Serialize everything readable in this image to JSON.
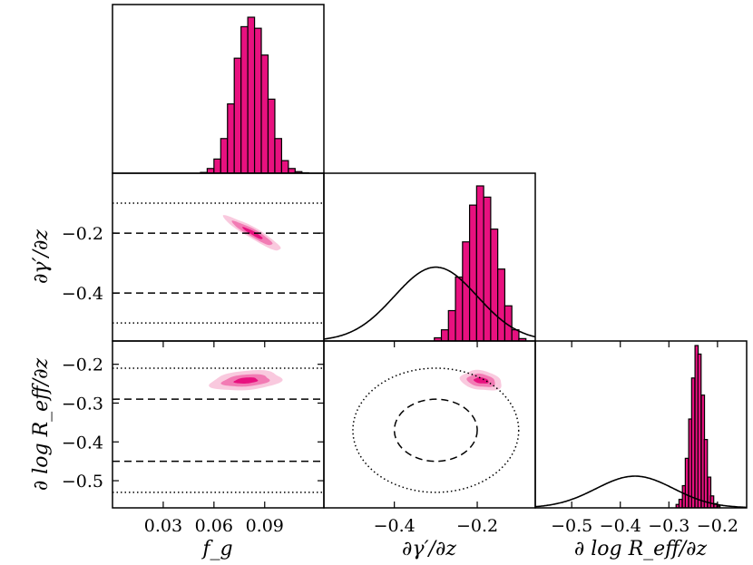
{
  "colors": {
    "histogram_fill": "#E8117F",
    "contour_levels": [
      "#F9C9DE",
      "#F27BB4",
      "#E8117F"
    ],
    "frame": "#000000",
    "prior_curve": "#000000"
  },
  "chart_data": [
    {
      "type": "bar",
      "panel": "histogram-fg",
      "title": "",
      "xlabel": "",
      "ylabel": "",
      "xlim": [
        0.0,
        0.125
      ],
      "ylim": [
        0,
        1.0
      ],
      "categories": [
        "0.054",
        "0.058",
        "0.062",
        "0.066",
        "0.070",
        "0.074",
        "0.078",
        "0.082",
        "0.086",
        "0.090",
        "0.094",
        "0.098",
        "0.102",
        "0.106",
        "0.110",
        "0.114"
      ],
      "bin_width": 0.004,
      "values": [
        0.005,
        0.03,
        0.09,
        0.22,
        0.44,
        0.73,
        0.93,
        0.99,
        0.92,
        0.75,
        0.47,
        0.22,
        0.08,
        0.03,
        0.01,
        0.003
      ]
    },
    {
      "type": "heatmap",
      "panel": "scatter-fg-dgamma",
      "xlabel": "",
      "ylabel": "∂γ′/∂z",
      "xlim": [
        0.0,
        0.125
      ],
      "ylim": [
        -0.56,
        0.0
      ],
      "yticks": [
        "−0.2",
        "−0.4"
      ],
      "ytick_values": [
        -0.2,
        -0.4
      ],
      "contours": [
        {
          "level": "outer",
          "center": [
            0.083,
            -0.2
          ],
          "sx": 0.017,
          "sy": 0.058,
          "rho": -0.93
        },
        {
          "level": "middle",
          "center": [
            0.083,
            -0.2
          ],
          "sx": 0.012,
          "sy": 0.04,
          "rho": -0.93
        },
        {
          "level": "inner",
          "center": [
            0.083,
            -0.2
          ],
          "sx": 0.006,
          "sy": 0.02,
          "rho": -0.93
        }
      ],
      "reference_lines": [
        {
          "style": "dotted",
          "y": -0.1
        },
        {
          "style": "dashed",
          "y": -0.2
        },
        {
          "style": "dashed",
          "y": -0.4
        },
        {
          "style": "dotted",
          "y": -0.5
        }
      ]
    },
    {
      "type": "heatmap",
      "panel": "scatter-fg-dlogreff",
      "xlabel": "f_g",
      "ylabel": "∂ log R_eff/∂z",
      "xlim": [
        0.0,
        0.125
      ],
      "ylim": [
        -0.57,
        -0.14
      ],
      "xticks": [
        "0.03",
        "0.06",
        "0.09"
      ],
      "xtick_values": [
        0.03,
        0.06,
        0.09
      ],
      "yticks": [
        "−0.2",
        "−0.3",
        "−0.4",
        "−0.5"
      ],
      "ytick_values": [
        -0.2,
        -0.3,
        -0.4,
        -0.5
      ],
      "contours": [
        {
          "level": "outer",
          "center": [
            0.079,
            -0.242
          ],
          "sx": 0.021,
          "sy": 0.026,
          "rho": 0.28
        },
        {
          "level": "middle",
          "center": [
            0.079,
            -0.242
          ],
          "sx": 0.014,
          "sy": 0.016,
          "rho": 0.28
        },
        {
          "level": "inner",
          "center": [
            0.079,
            -0.242
          ],
          "sx": 0.007,
          "sy": 0.008,
          "rho": 0.28
        }
      ],
      "reference_lines": [
        {
          "style": "dotted",
          "y": -0.21
        },
        {
          "style": "dashed",
          "y": -0.29
        },
        {
          "style": "dashed",
          "y": -0.45
        },
        {
          "style": "dotted",
          "y": -0.53
        }
      ]
    },
    {
      "type": "bar",
      "panel": "histogram-dgamma",
      "xlabel": "",
      "ylabel": "",
      "xlim": [
        -0.57,
        -0.06
      ],
      "ylim": [
        0,
        1.0
      ],
      "bin_width": 0.017,
      "categories": [
        "-0.295",
        "-0.278",
        "-0.261",
        "-0.244",
        "-0.227",
        "-0.210",
        "-0.193",
        "-0.176",
        "-0.159",
        "-0.142",
        "-0.125",
        "-0.108",
        "-0.091"
      ],
      "values": [
        0.02,
        0.07,
        0.19,
        0.4,
        0.62,
        0.85,
        0.97,
        0.9,
        0.7,
        0.45,
        0.22,
        0.07,
        0.015
      ],
      "prior_curve": {
        "type": "gaussian",
        "mean": -0.3,
        "sigma": 0.1,
        "peak_fraction": 0.44
      }
    },
    {
      "type": "heatmap",
      "panel": "scatter-dgamma-dlogreff",
      "xlabel": "∂γ′/∂z",
      "ylabel": "",
      "xlim": [
        -0.57,
        -0.06
      ],
      "ylim": [
        -0.57,
        -0.14
      ],
      "xticks": [
        "−0.4",
        "−0.2"
      ],
      "xtick_values": [
        -0.4,
        -0.2
      ],
      "contours": [
        {
          "level": "outer",
          "center": [
            -0.19,
            -0.242
          ],
          "sx": 0.05,
          "sy": 0.026,
          "rho": -0.25
        },
        {
          "level": "middle",
          "center": [
            -0.19,
            -0.242
          ],
          "sx": 0.034,
          "sy": 0.017,
          "rho": -0.25
        },
        {
          "level": "inner",
          "center": [
            -0.19,
            -0.242
          ],
          "sx": 0.018,
          "sy": 0.008,
          "rho": -0.25
        }
      ],
      "reference_ellipses": [
        {
          "style": "dashed",
          "center": [
            -0.3,
            -0.37
          ],
          "rx": 0.1,
          "ry": 0.08
        },
        {
          "style": "dotted",
          "center": [
            -0.3,
            -0.37
          ],
          "rx": 0.2,
          "ry": 0.16
        }
      ]
    },
    {
      "type": "bar",
      "panel": "histogram-dlogreff",
      "xlabel": "∂ log R_eff/∂z",
      "ylabel": "",
      "xlim": [
        -0.575,
        -0.14
      ],
      "ylim": [
        0,
        1.0
      ],
      "xticks": [
        "−0.5",
        "−0.4",
        "−0.3",
        "−0.2"
      ],
      "xtick_values": [
        -0.5,
        -0.4,
        -0.3,
        -0.2
      ],
      "bin_width": 0.0065,
      "categories": [
        "-0.282",
        "-0.276",
        "-0.269",
        "-0.263",
        "-0.256",
        "-0.250",
        "-0.243",
        "-0.237",
        "-0.230",
        "-0.224",
        "-0.217",
        "-0.211",
        "-0.204",
        "-0.198"
      ],
      "values": [
        0.02,
        0.05,
        0.13,
        0.29,
        0.52,
        0.76,
        0.95,
        0.9,
        0.66,
        0.4,
        0.18,
        0.07,
        0.025,
        0.01
      ],
      "prior_curve": {
        "type": "gaussian",
        "mean": -0.37,
        "sigma": 0.08,
        "peak_fraction": 0.19
      }
    }
  ]
}
